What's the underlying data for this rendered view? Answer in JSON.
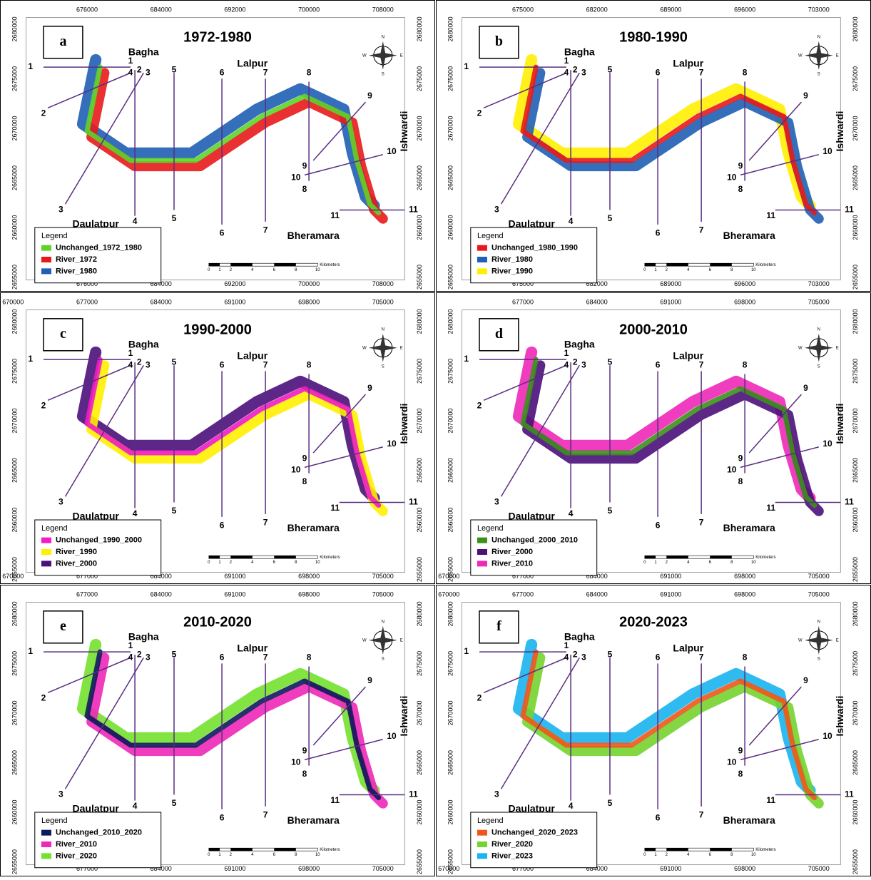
{
  "shared": {
    "places": {
      "bagha": "Bagha",
      "lalpur": "Lalpur",
      "daulatpur": "Daulatpur",
      "bheramara": "Bheramara",
      "ishwardi": "Ishwardi"
    },
    "section_labels": [
      1,
      2,
      3,
      4,
      5,
      6,
      7,
      8,
      9,
      10,
      11
    ],
    "compass": {
      "n": "N",
      "e": "E",
      "s": "S",
      "w": "W"
    },
    "legend_title": "Legend",
    "scale_labels": [
      0,
      1,
      2,
      4,
      6,
      8,
      10
    ],
    "scale_unit": "Kilometers"
  },
  "panels": [
    {
      "letter": "a",
      "title": "1972-1980",
      "xticks_top": [
        676000,
        684000,
        692000,
        700000,
        708000
      ],
      "xticks_bottom": [
        676000,
        684000,
        692000,
        700000,
        708000
      ],
      "yticks_left": [
        2680000,
        2675000,
        2670000,
        2665000,
        2660000,
        2655000
      ],
      "yticks_right": [
        2680000,
        2675000,
        2670000,
        2665000,
        2660000,
        2655000
      ],
      "legend": [
        {
          "label": "Unchanged_1972_1980",
          "color": "#5ed42a"
        },
        {
          "label": "River_1972",
          "color": "#e8191b"
        },
        {
          "label": "River_1980",
          "color": "#1f5fb4"
        }
      ]
    },
    {
      "letter": "b",
      "title": "1980-1990",
      "xticks_top": [
        675000,
        682000,
        689000,
        696000,
        703000
      ],
      "xticks_bottom": [
        675000,
        682000,
        689000,
        696000,
        703000
      ],
      "yticks_left": [
        2680000,
        2675000,
        2670000,
        2665000,
        2660000,
        2655000
      ],
      "yticks_right": [
        2680000,
        2675000,
        2670000,
        2665000,
        2660000,
        2655000
      ],
      "legend": [
        {
          "label": "Unchanged_1980_1990",
          "color": "#e8191b"
        },
        {
          "label": "River_1980",
          "color": "#1f5fb4"
        },
        {
          "label": "River_1990",
          "color": "#ffef00"
        }
      ]
    },
    {
      "letter": "c",
      "title": "1990-2000",
      "xticks_top": [
        670000,
        677000,
        684000,
        691000,
        698000,
        705000
      ],
      "xticks_bottom": [
        670000,
        677000,
        684000,
        691000,
        698000,
        705000
      ],
      "yticks_left": [
        2680000,
        2675000,
        2670000,
        2665000,
        2660000,
        2655000
      ],
      "yticks_right": [
        2680000,
        2675000,
        2670000,
        2665000,
        2660000,
        2655000
      ],
      "legend": [
        {
          "label": "Unchanged_1990_2000",
          "color": "#f01cc4"
        },
        {
          "label": "River_1990",
          "color": "#ffef00"
        },
        {
          "label": "River_2000",
          "color": "#4b0f7a"
        }
      ]
    },
    {
      "letter": "d",
      "title": "2000-2010",
      "xticks_top": [
        677000,
        684000,
        691000,
        698000,
        705000
      ],
      "xticks_bottom": [
        670000,
        677000,
        684000,
        691000,
        698000,
        705000
      ],
      "yticks_left": [
        2680000,
        2675000,
        2670000,
        2665000,
        2660000,
        2655000
      ],
      "yticks_right": [
        2680000,
        2675000,
        2670000,
        2665000,
        2660000,
        2655000
      ],
      "legend": [
        {
          "label": "Unchanged_2000_2010",
          "color": "#3d8f1c"
        },
        {
          "label": "River_2000",
          "color": "#4b0f7a"
        },
        {
          "label": "River_2010",
          "color": "#ee28b8"
        }
      ]
    },
    {
      "letter": "e",
      "title": "2010-2020",
      "xticks_top": [
        677000,
        684000,
        691000,
        698000,
        705000
      ],
      "xticks_bottom": [
        677000,
        684000,
        691000,
        698000,
        705000
      ],
      "yticks_left": [
        2680000,
        2675000,
        2670000,
        2665000,
        2660000,
        2655000
      ],
      "yticks_right": [
        2680000,
        2675000,
        2670000,
        2665000,
        2660000,
        2655000
      ],
      "legend": [
        {
          "label": "Unchanged_2010_2020",
          "color": "#0d1a5c"
        },
        {
          "label": "River_2010",
          "color": "#ee28b8"
        },
        {
          "label": "River_2020",
          "color": "#74e12e"
        }
      ]
    },
    {
      "letter": "f",
      "title": "2020-2023",
      "xticks_top": [
        670000,
        677000,
        684000,
        691000,
        698000,
        705000
      ],
      "xticks_bottom": [
        670000,
        677000,
        684000,
        691000,
        698000,
        705000
      ],
      "yticks_left": [
        2680000,
        2675000,
        2670000,
        2665000,
        2660000,
        2655000
      ],
      "yticks_right": [
        2680000,
        2675000,
        2670000,
        2665000,
        2660000,
        2655000
      ],
      "legend": [
        {
          "label": "Unchanged_2020_2023",
          "color": "#f0561c"
        },
        {
          "label": "River_2020",
          "color": "#74d32e"
        },
        {
          "label": "River_2023",
          "color": "#1ab4ee"
        }
      ]
    }
  ]
}
